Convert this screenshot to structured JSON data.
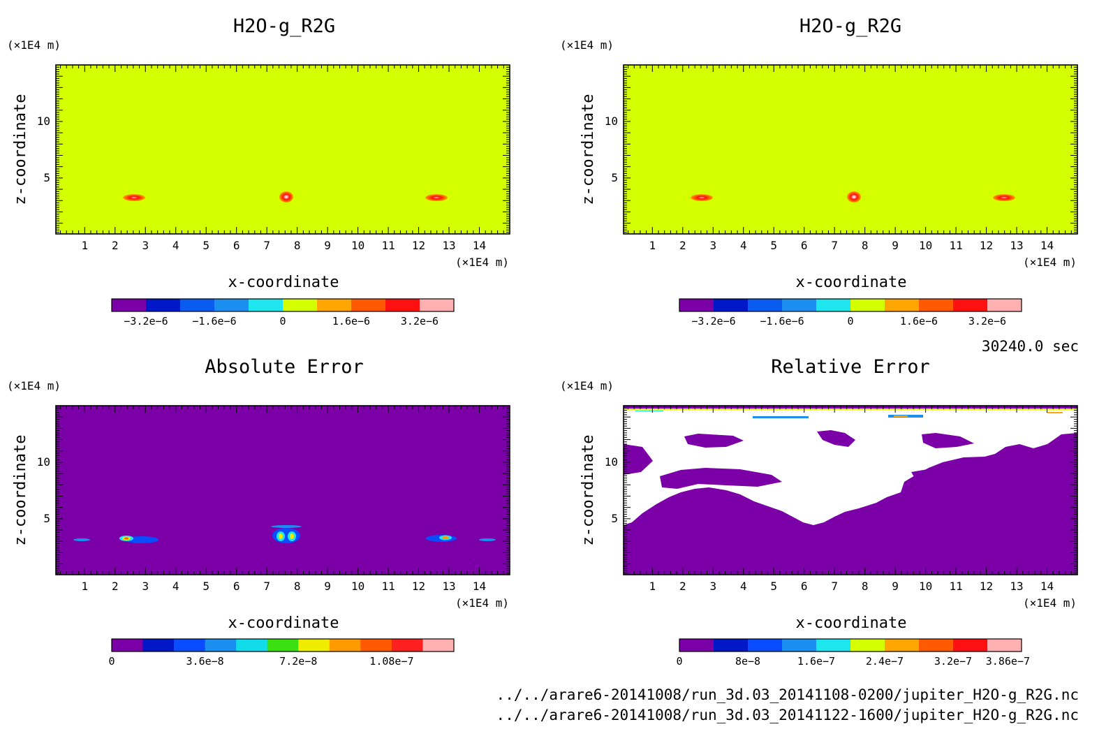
{
  "chart_data": [
    {
      "type": "heatmap",
      "title": "H2O-g_R2G",
      "xlabel": "x-coordinate",
      "ylabel": "z-coordinate",
      "x_unit": "(×1E4 m)",
      "y_unit": "(×1E4 m)",
      "xlim": [
        0.05,
        15.0
      ],
      "ylim": [
        0.05,
        15.0
      ],
      "xticks": [
        "1",
        "2",
        "3",
        "4",
        "5",
        "6",
        "7",
        "8",
        "9",
        "10",
        "11",
        "12",
        "13",
        "14"
      ],
      "yticks": [
        "5",
        "10"
      ],
      "background_level": "0",
      "features": [
        {
          "x": 2.7,
          "z": 3.3,
          "value": "~1.6e-6"
        },
        {
          "x": 7.6,
          "z": 3.4,
          "value": "~3.2e-6"
        },
        {
          "x": 12.5,
          "z": 3.3,
          "value": "~1.6e-6"
        }
      ],
      "colorbar": {
        "colors": [
          "#7b00a8",
          "#0018c8",
          "#0a5cf0",
          "#1a8ff0",
          "#1ee6ee",
          "#d4ff00",
          "#ffa500",
          "#ff5a00",
          "#ff1010",
          "#ffb0b0"
        ],
        "labels": [
          "−3.2e−6",
          "−1.6e−6",
          "0",
          "1.6e−6",
          "3.2e−6"
        ]
      }
    },
    {
      "type": "heatmap",
      "title": "H2O-g_R2G",
      "xlabel": "x-coordinate",
      "ylabel": "z-coordinate",
      "x_unit": "(×1E4 m)",
      "y_unit": "(×1E4 m)",
      "xlim": [
        0.05,
        15.0
      ],
      "ylim": [
        0.05,
        15.0
      ],
      "xticks": [
        "1",
        "2",
        "3",
        "4",
        "5",
        "6",
        "7",
        "8",
        "9",
        "10",
        "11",
        "12",
        "13",
        "14"
      ],
      "yticks": [
        "5",
        "10"
      ],
      "background_level": "0",
      "features": [
        {
          "x": 2.7,
          "z": 3.3,
          "value": "~1.6e-6"
        },
        {
          "x": 7.6,
          "z": 3.4,
          "value": "~3.2e-6"
        },
        {
          "x": 12.5,
          "z": 3.3,
          "value": "~1.6e-6"
        }
      ],
      "colorbar": {
        "colors": [
          "#7b00a8",
          "#0018c8",
          "#0a5cf0",
          "#1a8ff0",
          "#1ee6ee",
          "#d4ff00",
          "#ffa500",
          "#ff5a00",
          "#ff1010",
          "#ffb0b0"
        ],
        "labels": [
          "−3.2e−6",
          "−1.6e−6",
          "0",
          "1.6e−6",
          "3.2e−6"
        ]
      }
    },
    {
      "type": "heatmap",
      "title": "Absolute Error",
      "xlabel": "x-coordinate",
      "ylabel": "z-coordinate",
      "x_unit": "(×1E4 m)",
      "y_unit": "(×1E4 m)",
      "xlim": [
        0.05,
        15.0
      ],
      "ylim": [
        0.05,
        15.0
      ],
      "xticks": [
        "1",
        "2",
        "3",
        "4",
        "5",
        "6",
        "7",
        "8",
        "9",
        "10",
        "11",
        "12",
        "13",
        "14"
      ],
      "yticks": [
        "5",
        "10"
      ],
      "background_level": "0",
      "features": [
        {
          "x": 2.5,
          "z": 3.3,
          "value": "~7.2e-8"
        },
        {
          "x": 7.6,
          "z": 3.4,
          "value": "~1.08e-7"
        },
        {
          "x": 12.8,
          "z": 3.3,
          "value": "~7.2e-8"
        }
      ],
      "colorbar": {
        "colors": [
          "#7b00a8",
          "#0018c8",
          "#0a4cff",
          "#1a8ff0",
          "#12dcea",
          "#3ae010",
          "#f0ec00",
          "#ff9a00",
          "#ff5a00",
          "#ff2020",
          "#ffb0b0"
        ],
        "labels": [
          "0",
          "3.6e−8",
          "7.2e−8",
          "1.08e−7"
        ]
      }
    },
    {
      "type": "heatmap",
      "title": "Relative Error",
      "xlabel": "x-coordinate",
      "ylabel": "z-coordinate",
      "x_unit": "(×1E4 m)",
      "y_unit": "(×1E4 m)",
      "xlim": [
        0.05,
        15.0
      ],
      "ylim": [
        0.05,
        15.0
      ],
      "xticks": [
        "1",
        "2",
        "3",
        "4",
        "5",
        "6",
        "7",
        "8",
        "9",
        "10",
        "11",
        "12",
        "13",
        "14"
      ],
      "yticks": [
        "5",
        "10"
      ],
      "background_level": "0",
      "note": "white regions are undefined values",
      "colorbar": {
        "colors": [
          "#7b00a8",
          "#0018c8",
          "#0a4cff",
          "#1a8ff0",
          "#1ee6ee",
          "#d4ff00",
          "#ffa500",
          "#ff5a00",
          "#ff1010",
          "#ffb0b0"
        ],
        "labels": [
          "0",
          "8e−8",
          "1.6e−7",
          "2.4e−7",
          "3.2e−7",
          "3.86e−7"
        ]
      }
    }
  ],
  "time_label": "30240.0 sec",
  "files": [
    "../../arare6-20141008/run_3d.03_20141108-0200/jupiter_H2O-g_R2G.nc",
    "../../arare6-20141008/run_3d.03_20141122-1600/jupiter_H2O-g_R2G.nc"
  ]
}
